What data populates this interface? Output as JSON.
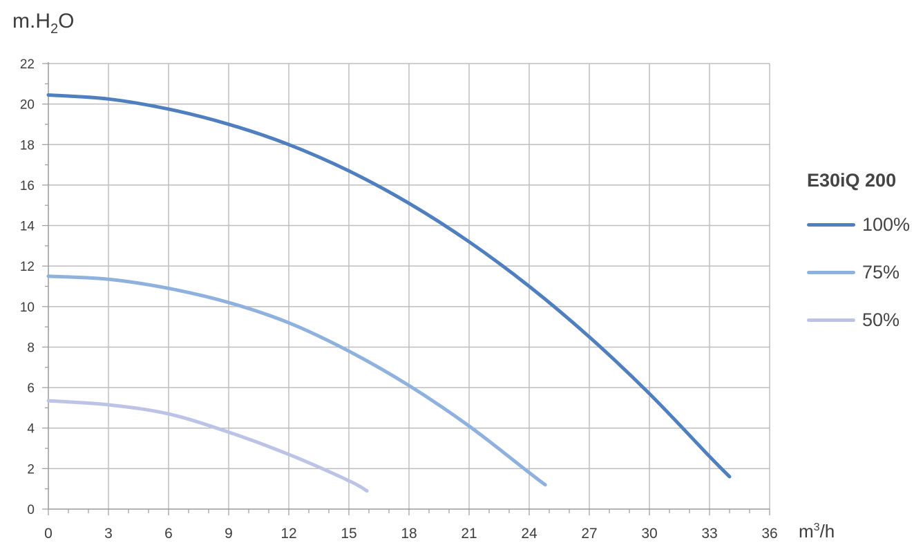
{
  "chart_data": {
    "type": "line",
    "title": "",
    "ylabel_prefix": "m.H",
    "ylabel_sub": "2",
    "ylabel_suffix": "O",
    "xlabel_prefix": "m",
    "xlabel_sup": "3",
    "xlabel_suffix": "/h",
    "xlim": [
      0,
      36
    ],
    "ylim": [
      0,
      22
    ],
    "xticks": [
      0,
      3,
      6,
      9,
      12,
      15,
      18,
      21,
      24,
      27,
      30,
      33,
      36
    ],
    "yticks": [
      0,
      2,
      4,
      6,
      8,
      10,
      12,
      14,
      16,
      18,
      20,
      22
    ],
    "grid": true,
    "legend_title": "E30iQ 200",
    "legend_position": "right",
    "series": [
      {
        "name": "100%",
        "color": "#4f7fbf",
        "x": [
          0,
          3,
          6,
          9,
          12,
          15,
          18,
          21,
          24,
          27,
          30,
          33,
          34
        ],
        "y": [
          20.45,
          20.25,
          19.75,
          19.0,
          18.0,
          16.7,
          15.1,
          13.2,
          11.0,
          8.5,
          5.7,
          2.6,
          1.6
        ]
      },
      {
        "name": "75%",
        "color": "#8eb1de",
        "x": [
          0,
          3,
          6,
          9,
          12,
          15,
          18,
          21,
          24,
          24.8
        ],
        "y": [
          11.5,
          11.35,
          10.9,
          10.2,
          9.2,
          7.8,
          6.1,
          4.1,
          1.8,
          1.2
        ]
      },
      {
        "name": "50%",
        "color": "#bcc3e6",
        "x": [
          0,
          3,
          6,
          9,
          12,
          15,
          15.9
        ],
        "y": [
          5.35,
          5.15,
          4.7,
          3.8,
          2.7,
          1.4,
          0.9
        ]
      }
    ]
  }
}
